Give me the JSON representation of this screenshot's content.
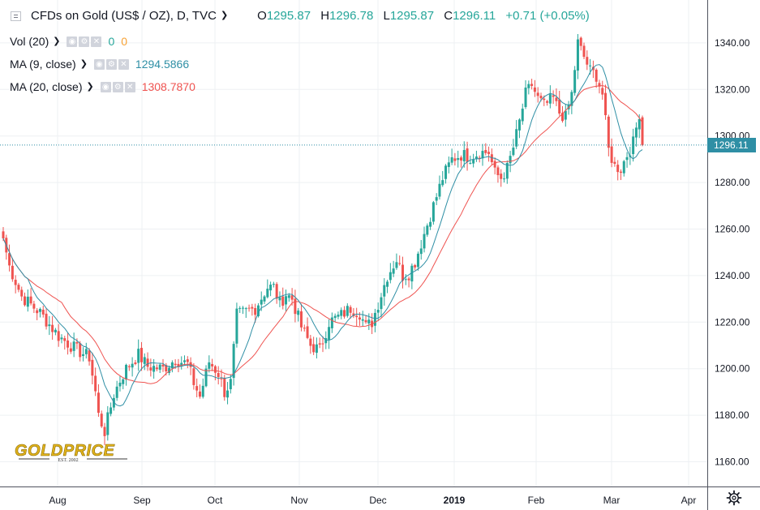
{
  "header": {
    "symbol_title": "CFDs on Gold (US$ / OZ), D, TVC",
    "open_label": "O",
    "open_value": "1295.87",
    "high_label": "H",
    "high_value": "1296.78",
    "low_label": "L",
    "low_value": "1295.87",
    "close_label": "C",
    "close_value": "1296.11",
    "change": "+0.71 (+0.05%)"
  },
  "indicators": [
    {
      "label": "Vol (20)",
      "value1": "0",
      "value2": "0",
      "color1": "#26a69a",
      "color2": "#f7a235"
    },
    {
      "label": "MA (9, close)",
      "value1": "1294.5866",
      "color1": "#2f8fa5"
    },
    {
      "label": "MA (20, close)",
      "value1": "1308.7870",
      "color1": "#ef5350"
    }
  ],
  "icons": [
    "eye-icon",
    "gear-icon",
    "close-icon",
    "chevron-down-icon",
    "settings-icon",
    "collapse-icon"
  ],
  "logo": {
    "text": "GOLDPRICE",
    "tagline": "EST. 2002"
  },
  "colors": {
    "up": "#26a69a",
    "down": "#ef5350",
    "ma9": "#2f8fa5",
    "ma20": "#ef5350",
    "price_line": "#2f8fa5",
    "grid": "#eef0f3"
  },
  "chart_data": {
    "type": "candlestick",
    "title": "CFDs on Gold (US$ / OZ), D, TVC",
    "x_labels": [
      "Aug",
      "Sep",
      "Oct",
      "Nov",
      "Dec",
      "2019",
      "Feb",
      "Mar",
      "Apr"
    ],
    "y_ticks": [
      1160,
      1180,
      1200,
      1220,
      1240,
      1260,
      1280,
      1300,
      1320,
      1340
    ],
    "ylim": [
      1154,
      1350
    ],
    "grid": true,
    "last_price": "1296.11",
    "last_value": 1296.11,
    "anchors": [
      [
        0,
        1256
      ],
      [
        2,
        1244
      ],
      [
        6,
        1231
      ],
      [
        12,
        1224
      ],
      [
        18,
        1214
      ],
      [
        24,
        1208
      ],
      [
        28,
        1205
      ],
      [
        30,
        1190
      ],
      [
        31,
        1180
      ],
      [
        33,
        1173
      ],
      [
        36,
        1189
      ],
      [
        38,
        1195
      ],
      [
        40,
        1200
      ],
      [
        44,
        1206
      ],
      [
        47,
        1201
      ],
      [
        52,
        1200
      ],
      [
        56,
        1204
      ],
      [
        60,
        1202
      ],
      [
        62,
        1194
      ],
      [
        64,
        1188
      ],
      [
        67,
        1203
      ],
      [
        70,
        1198
      ],
      [
        72,
        1190
      ],
      [
        74,
        1194
      ],
      [
        76,
        1223
      ],
      [
        80,
        1225
      ],
      [
        82,
        1226
      ],
      [
        86,
        1235
      ],
      [
        88,
        1235
      ],
      [
        90,
        1228
      ],
      [
        92,
        1232
      ],
      [
        94,
        1230
      ],
      [
        97,
        1218
      ],
      [
        100,
        1210
      ],
      [
        103,
        1208
      ],
      [
        106,
        1220
      ],
      [
        110,
        1223
      ],
      [
        113,
        1226
      ],
      [
        116,
        1224
      ],
      [
        118,
        1218
      ],
      [
        120,
        1220
      ],
      [
        122,
        1228
      ],
      [
        125,
        1240
      ],
      [
        128,
        1247
      ],
      [
        130,
        1240
      ],
      [
        132,
        1241
      ],
      [
        134,
        1246
      ],
      [
        137,
        1258
      ],
      [
        140,
        1270
      ],
      [
        143,
        1282
      ],
      [
        146,
        1290
      ],
      [
        149,
        1292
      ],
      [
        152,
        1291
      ],
      [
        155,
        1293
      ],
      [
        158,
        1293
      ],
      [
        160,
        1284
      ],
      [
        162,
        1282
      ],
      [
        164,
        1286
      ],
      [
        166,
        1295
      ],
      [
        168,
        1306
      ],
      [
        170,
        1318
      ],
      [
        172,
        1322
      ],
      [
        174,
        1316
      ],
      [
        176,
        1313
      ],
      [
        179,
        1316
      ],
      [
        181,
        1310
      ],
      [
        183,
        1308
      ],
      [
        185,
        1318
      ],
      [
        187,
        1340
      ],
      [
        189,
        1334
      ],
      [
        191,
        1328
      ],
      [
        193,
        1326
      ],
      [
        195,
        1318
      ],
      [
        197,
        1294
      ],
      [
        199,
        1287
      ],
      [
        201,
        1286
      ],
      [
        203,
        1292
      ],
      [
        205,
        1297
      ],
      [
        207,
        1310
      ],
      [
        208,
        1296
      ]
    ],
    "ma9_last": 1294.5866,
    "ma20_last": 1308.787,
    "series": [
      {
        "name": "MA (9, close)"
      },
      {
        "name": "MA (20, close)"
      }
    ]
  }
}
